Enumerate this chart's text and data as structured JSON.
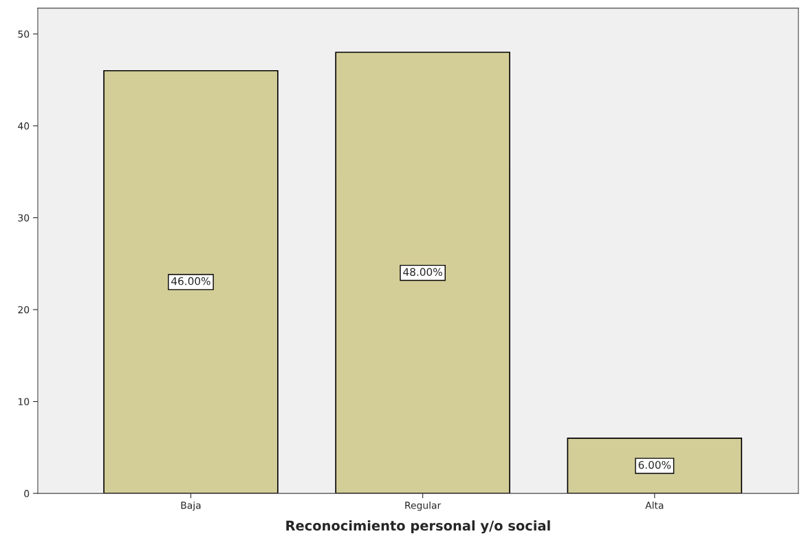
{
  "chart_data": {
    "type": "bar",
    "xlabel": "Reconocimiento personal y/o social",
    "categories": [
      "Baja",
      "Regular",
      "Alta"
    ],
    "values": [
      46,
      48,
      6
    ],
    "value_labels": [
      "46.00%",
      "48.00%",
      "6.00%"
    ],
    "color": "#d3cd98",
    "ylim": [
      0,
      52.8
    ],
    "yticks": [
      0,
      10,
      20,
      30,
      40,
      50
    ],
    "grid": false,
    "legend": false
  }
}
